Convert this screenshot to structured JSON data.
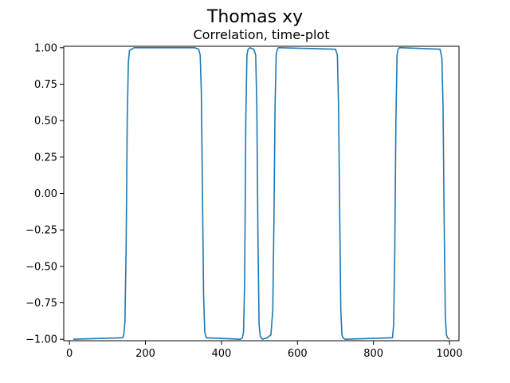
{
  "figure": {
    "suptitle": "Thomas xy",
    "title": "Correlation, time-plot"
  },
  "chart_data": {
    "type": "line",
    "title": "Correlation, time-plot",
    "suptitle": "Thomas xy",
    "xlabel": "",
    "ylabel": "",
    "xlim": [
      -15,
      1025
    ],
    "ylim": [
      -1.01,
      1.01
    ],
    "x_ticks": [
      0,
      200,
      400,
      600,
      800,
      1000
    ],
    "x_tick_labels": [
      "0",
      "200",
      "400",
      "600",
      "800",
      "1000"
    ],
    "y_ticks": [
      1.0,
      0.75,
      0.5,
      0.25,
      0.0,
      -0.25,
      -0.5,
      -0.75,
      -1.0
    ],
    "y_tick_labels": [
      "1.00",
      "0.75",
      "0.50",
      "0.25",
      "0.00",
      "−0.25",
      "−0.50",
      "−0.75",
      "−1.00"
    ],
    "grid": false,
    "series": [
      {
        "color": "#1f77b4",
        "x": [
          10,
          140,
          143,
          146,
          149,
          152,
          155,
          158,
          170,
          330,
          340,
          344,
          347,
          350,
          353,
          356,
          360,
          450,
          455,
          458,
          461,
          464,
          467,
          470,
          475,
          485,
          490,
          493,
          496,
          499,
          502,
          505,
          508,
          520,
          530,
          535,
          538,
          541,
          544,
          547,
          550,
          555,
          700,
          705,
          708,
          711,
          714,
          717,
          720,
          725,
          850,
          853,
          856,
          859,
          862,
          865,
          868,
          875,
          975,
          980,
          983,
          986,
          989,
          992,
          995,
          1000
        ],
        "y": [
          -1.0,
          -0.99,
          -0.97,
          -0.88,
          -0.4,
          0.5,
          0.9,
          0.98,
          1.0,
          1.0,
          0.99,
          0.95,
          0.7,
          0.0,
          -0.7,
          -0.95,
          -0.99,
          -1.0,
          -0.99,
          -0.95,
          -0.6,
          0.5,
          0.95,
          0.99,
          1.0,
          0.99,
          0.95,
          0.6,
          -0.3,
          -0.9,
          -0.98,
          -0.99,
          -1.0,
          -0.99,
          -0.97,
          -0.8,
          -0.2,
          0.6,
          0.95,
          0.99,
          1.0,
          1.0,
          0.99,
          0.95,
          0.6,
          -0.1,
          -0.8,
          -0.97,
          -0.99,
          -1.0,
          -0.99,
          -0.9,
          -0.4,
          0.5,
          0.95,
          0.99,
          1.0,
          1.0,
          0.99,
          0.93,
          0.6,
          -0.2,
          -0.85,
          -0.97,
          -0.99,
          -1.0
        ]
      }
    ]
  }
}
